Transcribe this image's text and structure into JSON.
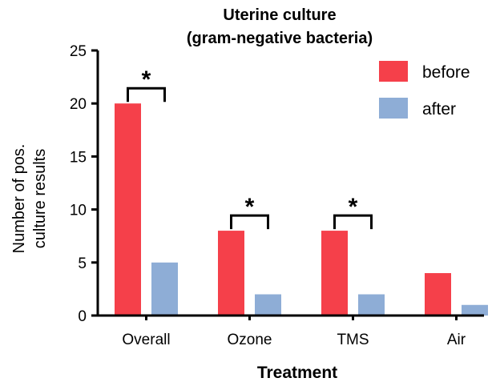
{
  "chart_data": {
    "type": "bar",
    "title_lines": [
      "Uterine culture",
      "(gram-negative bacteria)"
    ],
    "xlabel": "Treatment",
    "ylabel_lines": [
      "Number of pos.",
      "culture results"
    ],
    "categories": [
      "Overall",
      "Ozone",
      "TMS",
      "Air"
    ],
    "series": [
      {
        "name": "before",
        "color": "#f5404a",
        "values": [
          20,
          8,
          8,
          4
        ]
      },
      {
        "name": "after",
        "color": "#8eadd6",
        "values": [
          5,
          2,
          2,
          1
        ]
      }
    ],
    "ylim": [
      0,
      25
    ],
    "yticks": [
      0,
      5,
      10,
      15,
      20,
      25
    ],
    "legend_position": "top-right",
    "significance": {
      "marker": "*",
      "categories": [
        "Overall",
        "Ozone",
        "TMS"
      ]
    }
  }
}
